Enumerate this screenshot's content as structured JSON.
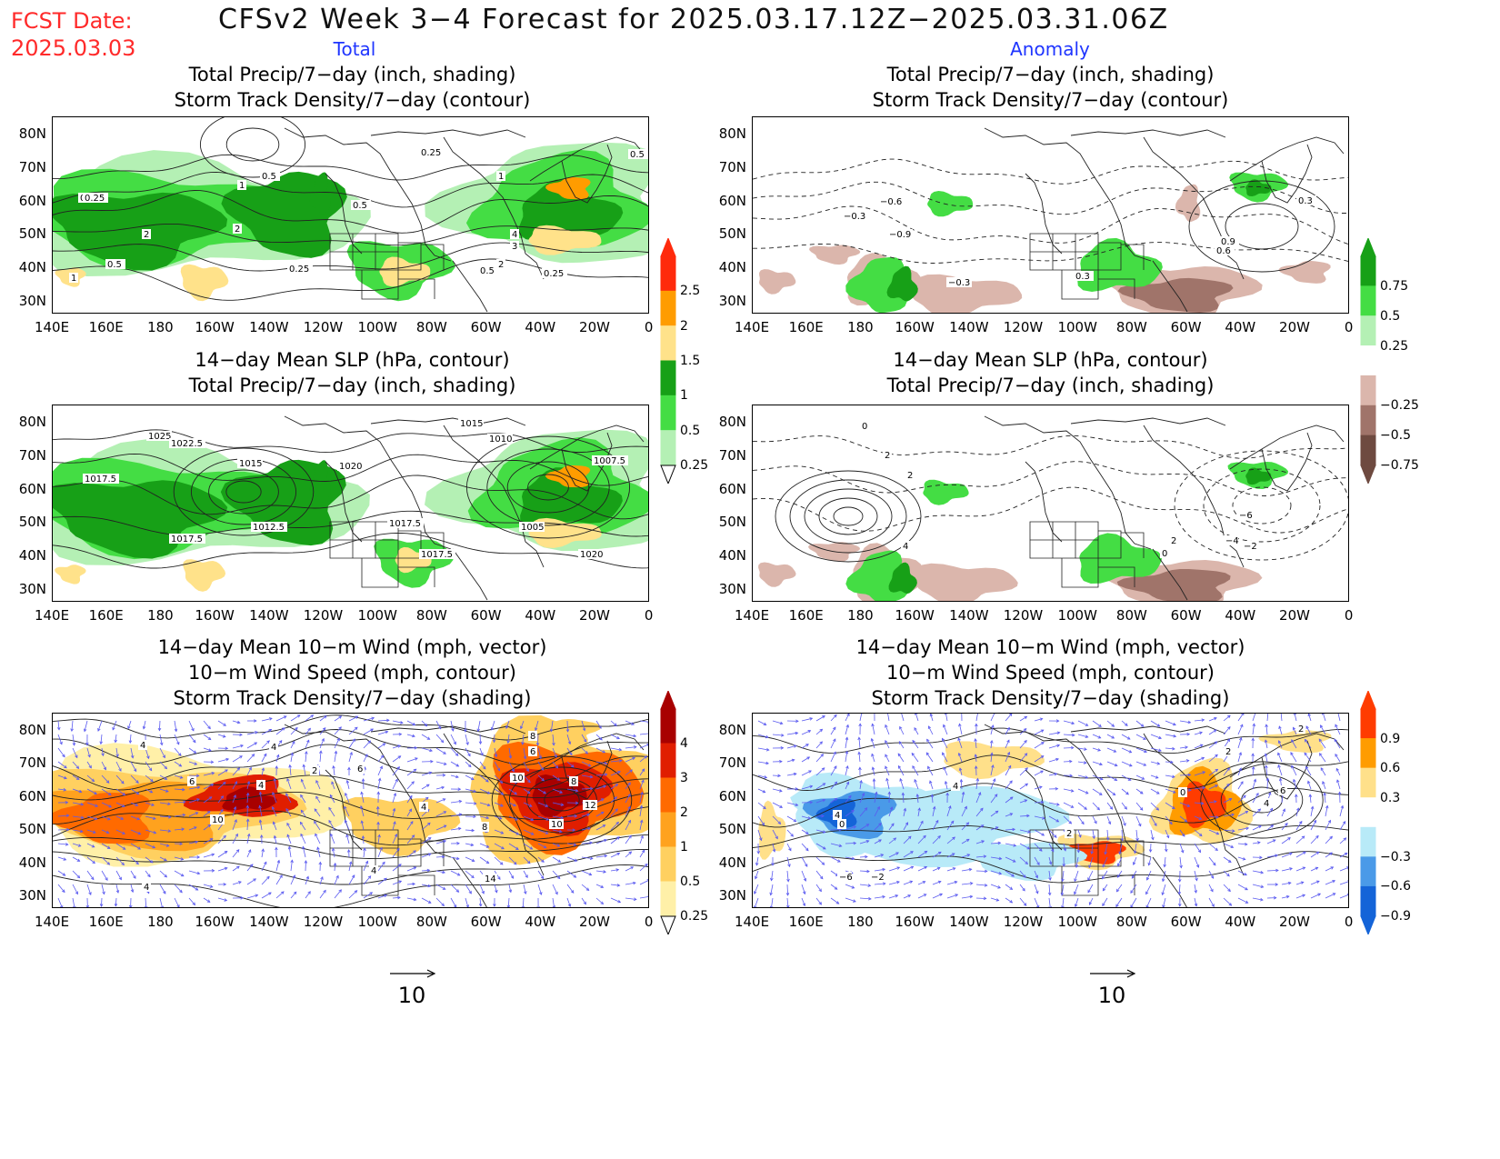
{
  "header": {
    "fcst_label": "FCST Date:",
    "fcst_date": "2025.03.03",
    "title": "CFSv2 Week 3−4 Forecast for 2025.03.17.12Z−2025.03.31.06Z",
    "left_column": "Total",
    "right_column": "Anomaly"
  },
  "panels": {
    "total_precip_storm": [
      "Total Precip/7−day (inch, shading)",
      "Storm Track Density/7−day (contour)"
    ],
    "slp_precip": [
      "14−day Mean SLP (hPa, contour)",
      "Total Precip/7−day (inch, shading)"
    ],
    "wind_storm": [
      "14−day Mean 10−m Wind (mph, vector)",
      "10−m Wind Speed (mph, contour)",
      "Storm Track Density/7−day (shading)"
    ]
  },
  "axes": {
    "lat_ticks": [
      "80N",
      "70N",
      "60N",
      "50N",
      "40N",
      "30N"
    ],
    "lon_ticks": [
      "140E",
      "160E",
      "180",
      "160W",
      "140W",
      "120W",
      "100W",
      "80W",
      "60W",
      "40W",
      "20W",
      "0"
    ]
  },
  "colorbars": {
    "precip_total": {
      "labels": [
        "2.5",
        "2",
        "1.5",
        "1",
        "0.5",
        "0.25"
      ],
      "colors": [
        "#ff2a0c",
        "#ff9c00",
        "#ffe28a",
        "#17a017",
        "#44dd44",
        "#b4f0b4"
      ]
    },
    "precip_anom": {
      "labels": [
        "0.75",
        "0.5",
        "0.25",
        "−0.25",
        "−0.5",
        "−0.75"
      ],
      "colors": [
        "#17a017",
        "#44dd44",
        "#b4f0b4",
        "#ffffff",
        "#dbb6ac",
        "#a0746a",
        "#6e4a40"
      ]
    },
    "storm_total": {
      "labels": [
        "4",
        "3",
        "2",
        "1",
        "0.5",
        "0.25"
      ],
      "colors": [
        "#a80000",
        "#e01e00",
        "#ff6a00",
        "#ffa21e",
        "#ffd060",
        "#fff0a8"
      ]
    },
    "storm_anom": {
      "labels": [
        "0.9",
        "0.6",
        "0.3",
        "−0.3",
        "−0.6",
        "−0.9"
      ],
      "colors": [
        "#ff3c00",
        "#ff9c00",
        "#ffe08a",
        "#ffffff",
        "#b8eaf8",
        "#4a9ae8",
        "#1464d8"
      ]
    }
  },
  "contour_labels": {
    "p1": [
      "0.25",
      "0.5",
      "1",
      "2",
      "0.5",
      "0.25",
      "2",
      "1",
      "0.5",
      "0.25",
      "1",
      "2",
      "4",
      "3",
      "0.25",
      "0.5",
      "0.25",
      "0.5"
    ],
    "p2": [
      "−0.3",
      "−0.6",
      "−0.9",
      "−0.3",
      "0.3",
      "0.9",
      "0.6",
      "0.3"
    ],
    "p3": [
      "1025",
      "1022.5",
      "1017.5",
      "1015",
      "1020",
      "1012.5",
      "1017.5",
      "1015",
      "1010",
      "1017.5",
      "1017.5",
      "1005",
      "1007.5",
      "1020"
    ],
    "p4": [
      "0",
      "2",
      "2",
      "4",
      "0",
      "2",
      "−2",
      "−4",
      "−6"
    ],
    "p5": [
      "4",
      "6",
      "4",
      "2",
      "10",
      "4",
      "6",
      "4",
      "8",
      "10",
      "8",
      "6",
      "10",
      "12",
      "8",
      "4",
      "14",
      "4"
    ],
    "p6": [
      "4",
      "0",
      "−6",
      "−2",
      "4",
      "2",
      "0",
      "2",
      "2",
      "4",
      "6"
    ]
  },
  "vector_scale": "10"
}
